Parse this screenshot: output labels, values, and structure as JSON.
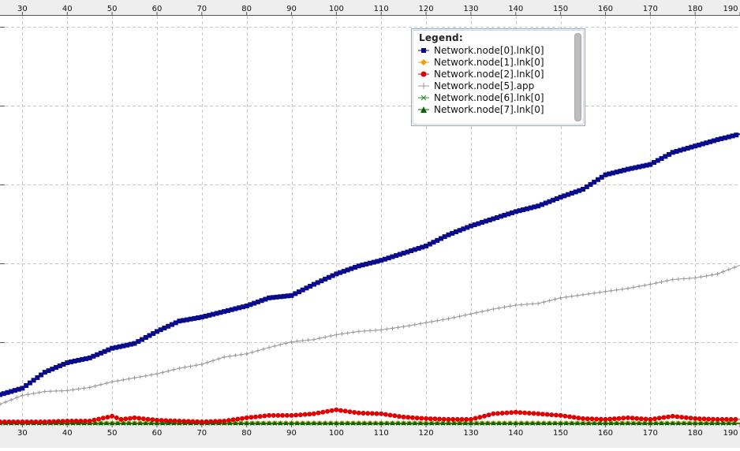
{
  "chart_data": {
    "type": "line",
    "title": "",
    "xlabel": "",
    "ylabel": "",
    "xlim": [
      25,
      190
    ],
    "ylim": [
      0,
      510
    ],
    "x_ticks": [
      30,
      40,
      50,
      60,
      70,
      80,
      90,
      100,
      110,
      120,
      130,
      140,
      150,
      160,
      170,
      180,
      190
    ],
    "grid": true,
    "legend": {
      "title": "Legend:",
      "placement": "top-right",
      "entries": [
        "Network.node[0].lnk[0]",
        "Network.node[1].lnk[0]",
        "Network.node[2].lnk[0]",
        "Network.node[5].app",
        "Network.node[6].lnk[0]",
        "Network.node[7].lnk[0]"
      ]
    },
    "series": [
      {
        "name": "Network.node[0].lnk[0]",
        "color": "#0a0a8c",
        "marker": "square",
        "x": [
          25,
          30,
          35,
          40,
          45,
          50,
          55,
          60,
          65,
          70,
          75,
          80,
          85,
          90,
          95,
          100,
          105,
          110,
          115,
          120,
          125,
          130,
          135,
          140,
          145,
          150,
          155,
          160,
          165,
          170,
          175,
          180,
          185,
          190
        ],
        "values": [
          36,
          44,
          64,
          76,
          82,
          94,
          100,
          115,
          128,
          133,
          140,
          147,
          157,
          160,
          174,
          187,
          197,
          204,
          213,
          222,
          236,
          247,
          256,
          265,
          272,
          283,
          293,
          311,
          318,
          324,
          339,
          347,
          355,
          362
        ]
      },
      {
        "name": "Network.node[1].lnk[0]",
        "color": "#f0a000",
        "marker": "diamond",
        "x": [
          25,
          50,
          75,
          100,
          125,
          150,
          175,
          190
        ],
        "values": [
          1,
          1,
          1,
          1,
          1,
          1,
          1,
          1
        ]
      },
      {
        "name": "Network.node[2].lnk[0]",
        "color": "#e00000",
        "marker": "circle",
        "x": [
          25,
          30,
          35,
          40,
          45,
          50,
          52,
          55,
          60,
          65,
          70,
          75,
          80,
          85,
          90,
          95,
          100,
          105,
          110,
          115,
          120,
          125,
          130,
          135,
          140,
          145,
          150,
          155,
          160,
          165,
          170,
          175,
          180,
          185,
          190
        ],
        "values": [
          2,
          2,
          2,
          3,
          3,
          9,
          5,
          7,
          4,
          3,
          2,
          3,
          7,
          10,
          10,
          12,
          17,
          13,
          12,
          8,
          6,
          5,
          5,
          12,
          14,
          12,
          10,
          6,
          5,
          7,
          5,
          9,
          6,
          5,
          5
        ]
      },
      {
        "name": "Network.node[5].app",
        "color": "#9a9a9a",
        "marker": "plus",
        "x": [
          25,
          30,
          35,
          40,
          45,
          50,
          55,
          60,
          65,
          70,
          75,
          80,
          85,
          90,
          95,
          100,
          105,
          110,
          115,
          120,
          125,
          130,
          135,
          140,
          145,
          150,
          155,
          160,
          165,
          170,
          175,
          180,
          185,
          190
        ],
        "values": [
          24,
          35,
          40,
          41,
          45,
          52,
          57,
          62,
          69,
          74,
          83,
          87,
          95,
          102,
          105,
          111,
          115,
          117,
          121,
          126,
          131,
          137,
          143,
          148,
          150,
          157,
          161,
          165,
          169,
          174,
          180,
          182,
          187,
          198
        ]
      },
      {
        "name": "Network.node[6].lnk[0]",
        "color": "#2a8a2a",
        "marker": "x",
        "x": [
          25,
          50,
          75,
          100,
          125,
          150,
          175,
          190
        ],
        "values": [
          0,
          0,
          0,
          0,
          0,
          0,
          0,
          0
        ]
      },
      {
        "name": "Network.node[7].lnk[0]",
        "color": "#006400",
        "marker": "triangle",
        "x": [
          25,
          50,
          75,
          100,
          125,
          150,
          175,
          190
        ],
        "values": [
          0,
          0,
          0,
          0,
          0,
          0,
          0,
          0
        ]
      }
    ]
  }
}
